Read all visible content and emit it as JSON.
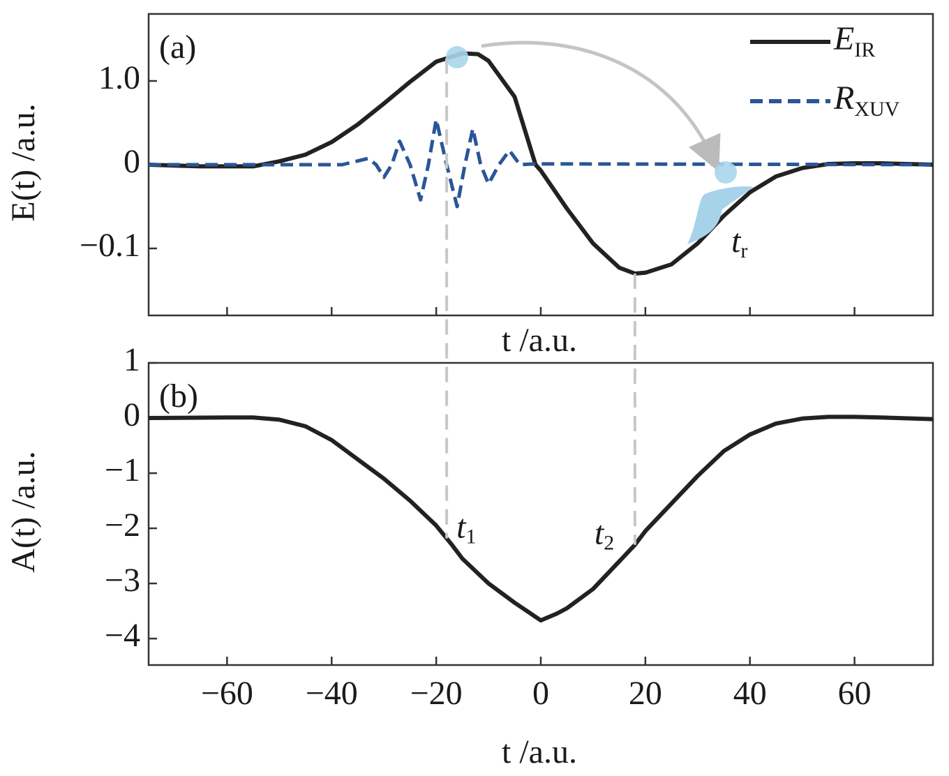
{
  "chart_data": [
    {
      "type": "line",
      "panel_label": "(a)",
      "ylabel": "E(t) /a.u.",
      "xlabel": "t /a.u.",
      "xlim": [
        -75,
        75
      ],
      "xticks": [
        -60,
        -40,
        -20,
        0,
        20,
        40,
        60
      ],
      "show_xtick_labels": false,
      "ylim": [
        -0.18,
        1.8
      ],
      "yticks": [
        {
          "value": 1,
          "label": "1.0"
        },
        0,
        {
          "value": -0.1,
          "label": "−0.1"
        }
      ],
      "legend": "upper right",
      "series": [
        {
          "name": "E",
          "sub": "IR",
          "color": "#222222",
          "dash": false,
          "x": [
            -75,
            -65,
            -55,
            -50,
            -45,
            -40,
            -35,
            -30,
            -25,
            -20,
            -15,
            -12,
            -10,
            -5,
            -1,
            0,
            5,
            10,
            15,
            18,
            20,
            25,
            30,
            35,
            40,
            45,
            50,
            55,
            60,
            65,
            70,
            75
          ],
          "values": [
            0,
            -0.002,
            -0.002,
            0.04,
            0.12,
            0.27,
            0.48,
            0.73,
            0.99,
            1.23,
            1.33,
            1.32,
            1.24,
            0.81,
            0,
            -0.007,
            -0.0525,
            -0.094,
            -0.123,
            -0.13,
            -0.129,
            -0.119,
            -0.094,
            -0.061,
            -0.033,
            -0.014,
            -0.004,
            0.008,
            0.017,
            0.017,
            0.008,
            0
          ]
        },
        {
          "name": "R",
          "sub": "XUV",
          "color": "#2a5696",
          "dash": true,
          "x": [
            -75,
            -38,
            -33,
            -31.5,
            -30,
            -28.5,
            -27,
            -25,
            -23,
            -21.5,
            -20,
            -18,
            -16,
            -14.5,
            -13,
            -11.5,
            -10,
            -8,
            -6,
            -4,
            -1,
            75
          ],
          "values": [
            0,
            0,
            0.075,
            0,
            -0.015,
            0,
            0.28,
            0,
            -0.042,
            0,
            0.54,
            0,
            -0.05,
            0,
            0.43,
            0,
            -0.023,
            0,
            0.17,
            0,
            0.01,
            0
          ]
        }
      ],
      "annotation": {
        "text": "t",
        "sub": "r"
      }
    },
    {
      "type": "line",
      "panel_label": "(b)",
      "ylabel": "A(t) /a.u.",
      "xlabel": "t /a.u.",
      "xlim": [
        -75,
        75
      ],
      "xticks": [
        {
          "value": -60,
          "label": "−60"
        },
        {
          "value": -40,
          "label": "−40"
        },
        {
          "value": -20,
          "label": "−20"
        },
        0,
        20,
        40,
        60
      ],
      "show_xtick_labels": true,
      "ylim": [
        -4.48,
        1
      ],
      "yticks": [
        1,
        0,
        {
          "value": -1,
          "label": "−1"
        },
        {
          "value": -2,
          "label": "−2"
        },
        {
          "value": -3,
          "label": "−3"
        },
        {
          "value": -4,
          "label": "−4"
        }
      ],
      "series": [
        {
          "color": "#222222",
          "dash": false,
          "x": [
            -75,
            -60,
            -55,
            -50,
            -45,
            -40,
            -35,
            -30,
            -25,
            -20,
            -17,
            -15,
            -10,
            -5,
            0,
            3,
            5,
            10,
            15,
            18,
            20,
            25,
            30,
            35,
            40,
            45,
            50,
            55,
            60,
            65,
            75
          ],
          "values": [
            0,
            0.01,
            0.01,
            -0.03,
            -0.15,
            -0.4,
            -0.75,
            -1.1,
            -1.5,
            -1.95,
            -2.3,
            -2.55,
            -3.0,
            -3.35,
            -3.67,
            -3.55,
            -3.45,
            -3.1,
            -2.6,
            -2.3,
            -2.05,
            -1.55,
            -1.05,
            -0.6,
            -0.3,
            -0.1,
            -0.01,
            0.02,
            0.02,
            0.01,
            -0.02
          ]
        }
      ],
      "markers": [
        {
          "x": -18,
          "label": "t",
          "sub": "1"
        },
        {
          "x": 18,
          "label": "t",
          "sub": "2"
        }
      ]
    }
  ]
}
